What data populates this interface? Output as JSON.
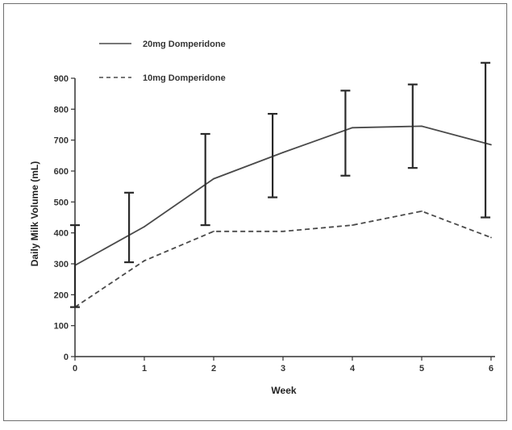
{
  "chart_data": {
    "type": "line",
    "title": "",
    "xlabel": "Week",
    "ylabel": "Daily Milk Volume (mL)",
    "x": [
      0,
      1,
      2,
      3,
      4,
      5,
      6
    ],
    "xlim": [
      0,
      6
    ],
    "ylim": [
      0,
      900
    ],
    "yticks": [
      0,
      100,
      200,
      300,
      400,
      500,
      600,
      700,
      800,
      900
    ],
    "grid": false,
    "legend_position": "top-left",
    "series": [
      {
        "name": "20mg Domperidone",
        "style": "solid",
        "color": "#4a4a4a",
        "points": [
          [
            0,
            295
          ],
          [
            1,
            420
          ],
          [
            2,
            575
          ],
          [
            3,
            660
          ],
          [
            4,
            740
          ],
          [
            5,
            745
          ],
          [
            6,
            685
          ]
        ],
        "error_bars": [
          {
            "x": 0,
            "low": 160,
            "high": 425
          },
          {
            "x": 0.78,
            "low": 305,
            "high": 530
          },
          {
            "x": 1.88,
            "low": 425,
            "high": 720
          },
          {
            "x": 2.85,
            "low": 515,
            "high": 785
          },
          {
            "x": 3.9,
            "low": 585,
            "high": 860
          },
          {
            "x": 4.87,
            "low": 610,
            "high": 880
          },
          {
            "x": 5.92,
            "low": 450,
            "high": 950
          }
        ]
      },
      {
        "name": "10mg Domperidone",
        "style": "dashed",
        "color": "#4a4a4a",
        "points": [
          [
            0,
            160
          ],
          [
            1,
            310
          ],
          [
            2,
            405
          ],
          [
            3,
            405
          ],
          [
            4,
            425
          ],
          [
            5,
            470
          ],
          [
            6,
            385
          ]
        ]
      }
    ]
  }
}
